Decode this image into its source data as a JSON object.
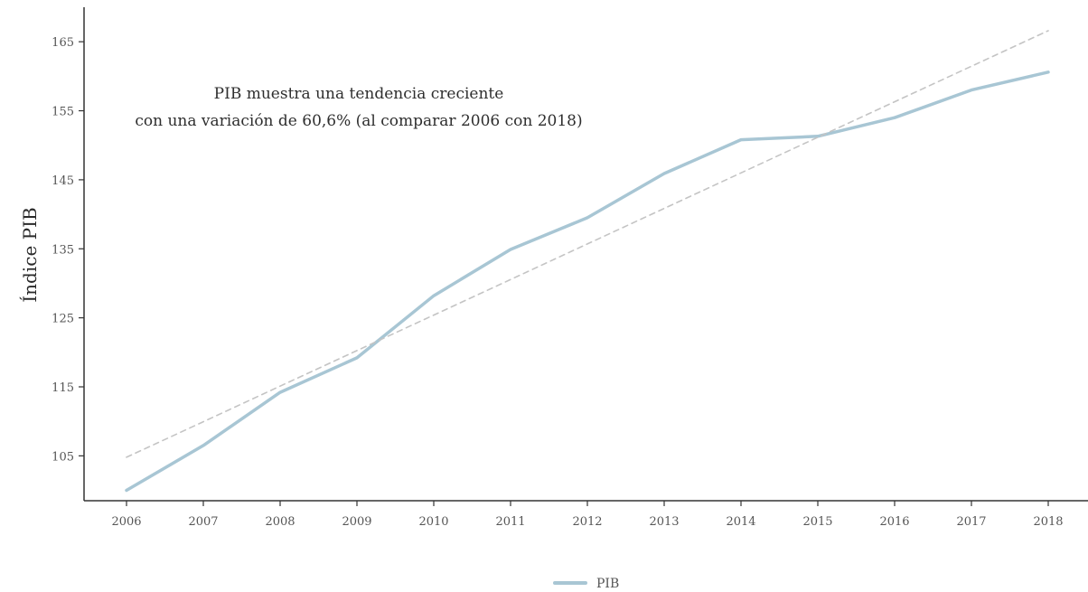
{
  "chart_data": {
    "type": "line",
    "x": [
      2006,
      2007,
      2008,
      2009,
      2010,
      2011,
      2012,
      2013,
      2014,
      2015,
      2016,
      2017,
      2018
    ],
    "series": [
      {
        "name": "PIB",
        "values": [
          100.0,
          106.5,
          114.2,
          119.2,
          128.2,
          134.9,
          139.5,
          145.9,
          150.8,
          151.3,
          154.0,
          158.0,
          160.6
        ],
        "color": "#a8c6d4",
        "style": "solid"
      },
      {
        "name": "",
        "values": [
          104.8,
          109.95,
          115.1,
          120.25,
          125.4,
          130.55,
          135.7,
          140.85,
          146.0,
          151.15,
          156.3,
          161.45,
          166.6
        ],
        "color": "#c4c4c4",
        "style": "dashed"
      }
    ],
    "xlabel": "",
    "ylabel": "Índice PIB",
    "yticks": [
      105,
      115,
      125,
      135,
      145,
      155,
      165
    ],
    "ylim": [
      98.5,
      170.0
    ],
    "xlim": [
      2005.45,
      2018.8
    ],
    "annotation": {
      "line1": "PIB muestra una tendencia creciente",
      "line2": "con una variación de 60,6% (al comparar 2006 con 2018)"
    },
    "legend": {
      "label": "PIB",
      "position": "bottom-center"
    },
    "grid": false,
    "axis_color": "#333333"
  }
}
